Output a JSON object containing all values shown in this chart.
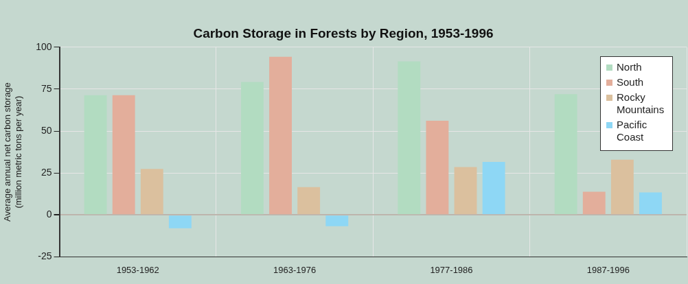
{
  "chart_data": {
    "type": "bar",
    "title": "Carbon Storage in Forests by Region, 1953-1996",
    "ylabel": "Average annual net carbon storage\n(million metric tons per year)",
    "categories": [
      "1953-1962",
      "1963-1976",
      "1977-1986",
      "1987-1996"
    ],
    "series": [
      {
        "name": "North",
        "color": "#b2dcc1",
        "values": [
          71.4,
          79.3,
          91.5,
          72
        ]
      },
      {
        "name": "South",
        "color": "#e3ae9b",
        "values": [
          71.4,
          94.3,
          56.2,
          13.8
        ]
      },
      {
        "name": "Rocky Mountains",
        "color": "#dbc09e",
        "values": [
          27.4,
          16.6,
          28.5,
          32.9
        ]
      },
      {
        "name": "Pacific Coast",
        "color": "#8ed7f5",
        "values": [
          -8,
          -6.7,
          31.6,
          13.4
        ]
      }
    ],
    "ylim": [
      -25,
      100
    ],
    "yticks": [
      -25,
      0,
      25,
      50,
      75,
      100
    ],
    "grid": true,
    "legend": "top right"
  }
}
